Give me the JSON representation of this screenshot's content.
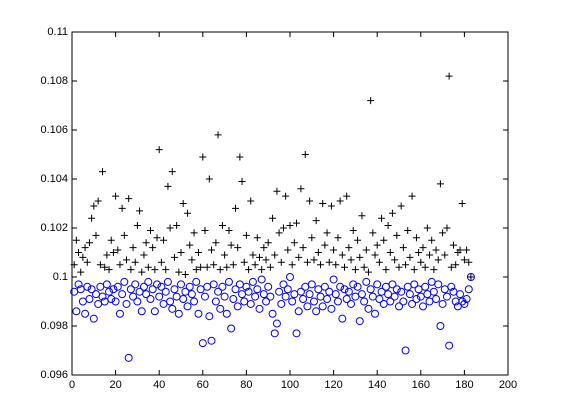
{
  "chart_data": {
    "type": "scatter",
    "x": [
      1,
      2,
      3,
      4,
      5,
      6,
      7,
      8,
      9,
      10,
      11,
      12,
      13,
      14,
      15,
      16,
      17,
      18,
      19,
      20,
      21,
      22,
      23,
      24,
      25,
      26,
      27,
      28,
      29,
      30,
      31,
      32,
      33,
      34,
      35,
      36,
      37,
      38,
      39,
      40,
      41,
      42,
      43,
      44,
      45,
      46,
      47,
      48,
      49,
      50,
      51,
      52,
      53,
      54,
      55,
      56,
      57,
      58,
      59,
      60,
      61,
      62,
      63,
      64,
      65,
      66,
      67,
      68,
      69,
      70,
      71,
      72,
      73,
      74,
      75,
      76,
      77,
      78,
      79,
      80,
      81,
      82,
      83,
      84,
      85,
      86,
      87,
      88,
      89,
      90,
      91,
      92,
      93,
      94,
      95,
      96,
      97,
      98,
      99,
      100,
      101,
      102,
      103,
      104,
      105,
      106,
      107,
      108,
      109,
      110,
      111,
      112,
      113,
      114,
      115,
      116,
      117,
      118,
      119,
      120,
      121,
      122,
      123,
      124,
      125,
      126,
      127,
      128,
      129,
      130,
      131,
      132,
      133,
      134,
      135,
      136,
      137,
      138,
      139,
      140,
      141,
      142,
      143,
      144,
      145,
      146,
      147,
      148,
      149,
      150,
      151,
      152,
      153,
      154,
      155,
      156,
      157,
      158,
      159,
      160,
      161,
      162,
      163,
      164,
      165,
      166,
      167,
      168,
      169,
      170,
      171,
      172,
      173,
      174,
      175,
      176,
      177,
      178,
      179,
      180,
      181,
      182,
      183
    ],
    "series": [
      {
        "marker": "plus",
        "color": "#000000",
        "values": [
          0.1005,
          0.1015,
          0.101,
          0.1002,
          0.1008,
          0.1012,
          0.1006,
          0.1014,
          0.1024,
          0.1029,
          0.1017,
          0.1031,
          0.1005,
          0.1043,
          0.1004,
          0.1009,
          0.1003,
          0.1015,
          0.101,
          0.1033,
          0.1011,
          0.1005,
          0.1028,
          0.1017,
          0.1007,
          0.1032,
          0.1003,
          0.1012,
          0.1006,
          0.1021,
          0.1027,
          0.1002,
          0.1009,
          0.1014,
          0.1004,
          0.1019,
          0.1012,
          0.1003,
          0.1016,
          0.1052,
          0.1006,
          0.1015,
          0.1003,
          0.1037,
          0.102,
          0.1043,
          0.1008,
          0.1021,
          0.1002,
          0.101,
          0.103,
          0.1001,
          0.1026,
          0.1013,
          0.1007,
          0.1018,
          0.1003,
          0.101,
          0.1004,
          0.1049,
          0.1019,
          0.1004,
          0.104,
          0.1011,
          0.1005,
          0.1014,
          0.1058,
          0.1003,
          0.1021,
          0.1009,
          0.1004,
          0.1019,
          0.1013,
          0.1005,
          0.1028,
          0.1012,
          0.1049,
          0.1039,
          0.1006,
          0.1017,
          0.1003,
          0.1031,
          0.1009,
          0.1005,
          0.1016,
          0.1008,
          0.1003,
          0.1012,
          0.1007,
          0.1014,
          0.1004,
          0.1024,
          0.1009,
          0.1035,
          0.1018,
          0.1006,
          0.102,
          0.1033,
          0.1011,
          0.1021,
          0.1005,
          0.1014,
          0.1022,
          0.1008,
          0.1036,
          0.1012,
          0.105,
          0.1006,
          0.1031,
          0.1016,
          0.1007,
          0.1023,
          0.101,
          0.1005,
          0.103,
          0.1013,
          0.1018,
          0.1006,
          0.1029,
          0.1011,
          0.1005,
          0.1016,
          0.1031,
          0.1009,
          0.1004,
          0.1033,
          0.1012,
          0.1007,
          0.1019,
          0.1003,
          0.1015,
          0.1008,
          0.1025,
          0.1004,
          0.1011,
          0.1002,
          0.1072,
          0.1018,
          0.1009,
          0.1013,
          0.1006,
          0.1024,
          0.1015,
          0.1003,
          0.1021,
          0.101,
          0.1026,
          0.1007,
          0.1017,
          0.1004,
          0.1029,
          0.1012,
          0.1005,
          0.1019,
          0.1008,
          0.1033,
          0.1003,
          0.1016,
          0.101,
          0.1006,
          0.1012,
          0.1004,
          0.102,
          0.1009,
          0.1015,
          0.1003,
          0.1011,
          0.1007,
          0.1038,
          0.1018,
          0.1009,
          0.102,
          0.1082,
          0.1004,
          0.1013,
          0.1005,
          0.101,
          0.1011,
          0.103,
          0.1007,
          0.1011,
          0.1006,
          0.1
        ]
      },
      {
        "marker": "circle",
        "color": "#0000ff",
        "values": [
          0.0994,
          0.0986,
          0.0997,
          0.0995,
          0.099,
          0.0985,
          0.0996,
          0.0991,
          0.0995,
          0.0983,
          0.0993,
          0.0989,
          0.0996,
          0.0992,
          0.099,
          0.0997,
          0.0994,
          0.0991,
          0.0995,
          0.099,
          0.0996,
          0.0985,
          0.0993,
          0.0998,
          0.0989,
          0.0967,
          0.0995,
          0.0992,
          0.0997,
          0.099,
          0.0994,
          0.0986,
          0.0996,
          0.0993,
          0.0998,
          0.0991,
          0.0995,
          0.0986,
          0.0997,
          0.0992,
          0.0996,
          0.0989,
          0.0994,
          0.0998,
          0.099,
          0.0987,
          0.0995,
          0.0992,
          0.0985,
          0.0997,
          0.0991,
          0.0994,
          0.0988,
          0.0996,
          0.0993,
          0.099,
          0.0998,
          0.0985,
          0.0995,
          0.0973,
          0.0992,
          0.0996,
          0.0984,
          0.0974,
          0.0997,
          0.099,
          0.0994,
          0.0987,
          0.0996,
          0.0992,
          0.0985,
          0.0998,
          0.0979,
          0.0991,
          0.0995,
          0.0988,
          0.0997,
          0.0993,
          0.099,
          0.0996,
          0.0994,
          0.0989,
          0.0998,
          0.0992,
          0.0995,
          0.0987,
          0.0999,
          0.0993,
          0.099,
          0.0996,
          0.0992,
          0.0985,
          0.0977,
          0.0981,
          0.0994,
          0.0989,
          0.0997,
          0.0992,
          0.0995,
          0.1,
          0.099,
          0.0993,
          0.0977,
          0.0986,
          0.0994,
          0.0991,
          0.0996,
          0.0988,
          0.0993,
          0.0997,
          0.099,
          0.0986,
          0.0995,
          0.0992,
          0.0988,
          0.0996,
          0.0991,
          0.0994,
          0.0987,
          0.0999,
          0.0993,
          0.099,
          0.0996,
          0.0983,
          0.0995,
          0.0991,
          0.0994,
          0.0989,
          0.0997,
          0.0992,
          0.0996,
          0.0982,
          0.0993,
          0.099,
          0.0998,
          0.0987,
          0.0995,
          0.0992,
          0.0985,
          0.0997,
          0.0991,
          0.0994,
          0.0989,
          0.0996,
          0.0993,
          0.099,
          0.0997,
          0.0992,
          0.0995,
          0.0988,
          0.0994,
          0.099,
          0.097,
          0.0996,
          0.0993,
          0.0989,
          0.0997,
          0.0991,
          0.0995,
          0.0992,
          0.0988,
          0.0996,
          0.0993,
          0.099,
          0.0998,
          0.0994,
          0.0991,
          0.0997,
          0.098,
          0.0989,
          0.0995,
          0.0992,
          0.0972,
          0.0996,
          0.0994,
          0.099,
          0.0988,
          0.0993,
          0.099,
          0.0989,
          0.0991,
          0.0995,
          0.1
        ]
      }
    ],
    "xlim": [
      0,
      200
    ],
    "xticks": [
      0,
      20,
      40,
      60,
      80,
      100,
      120,
      140,
      160,
      180,
      200
    ],
    "ylim": [
      0.096,
      0.11
    ],
    "yticks": [
      0.096,
      0.098,
      0.1,
      0.102,
      0.104,
      0.106,
      0.108,
      0.11
    ],
    "grid": false
  }
}
